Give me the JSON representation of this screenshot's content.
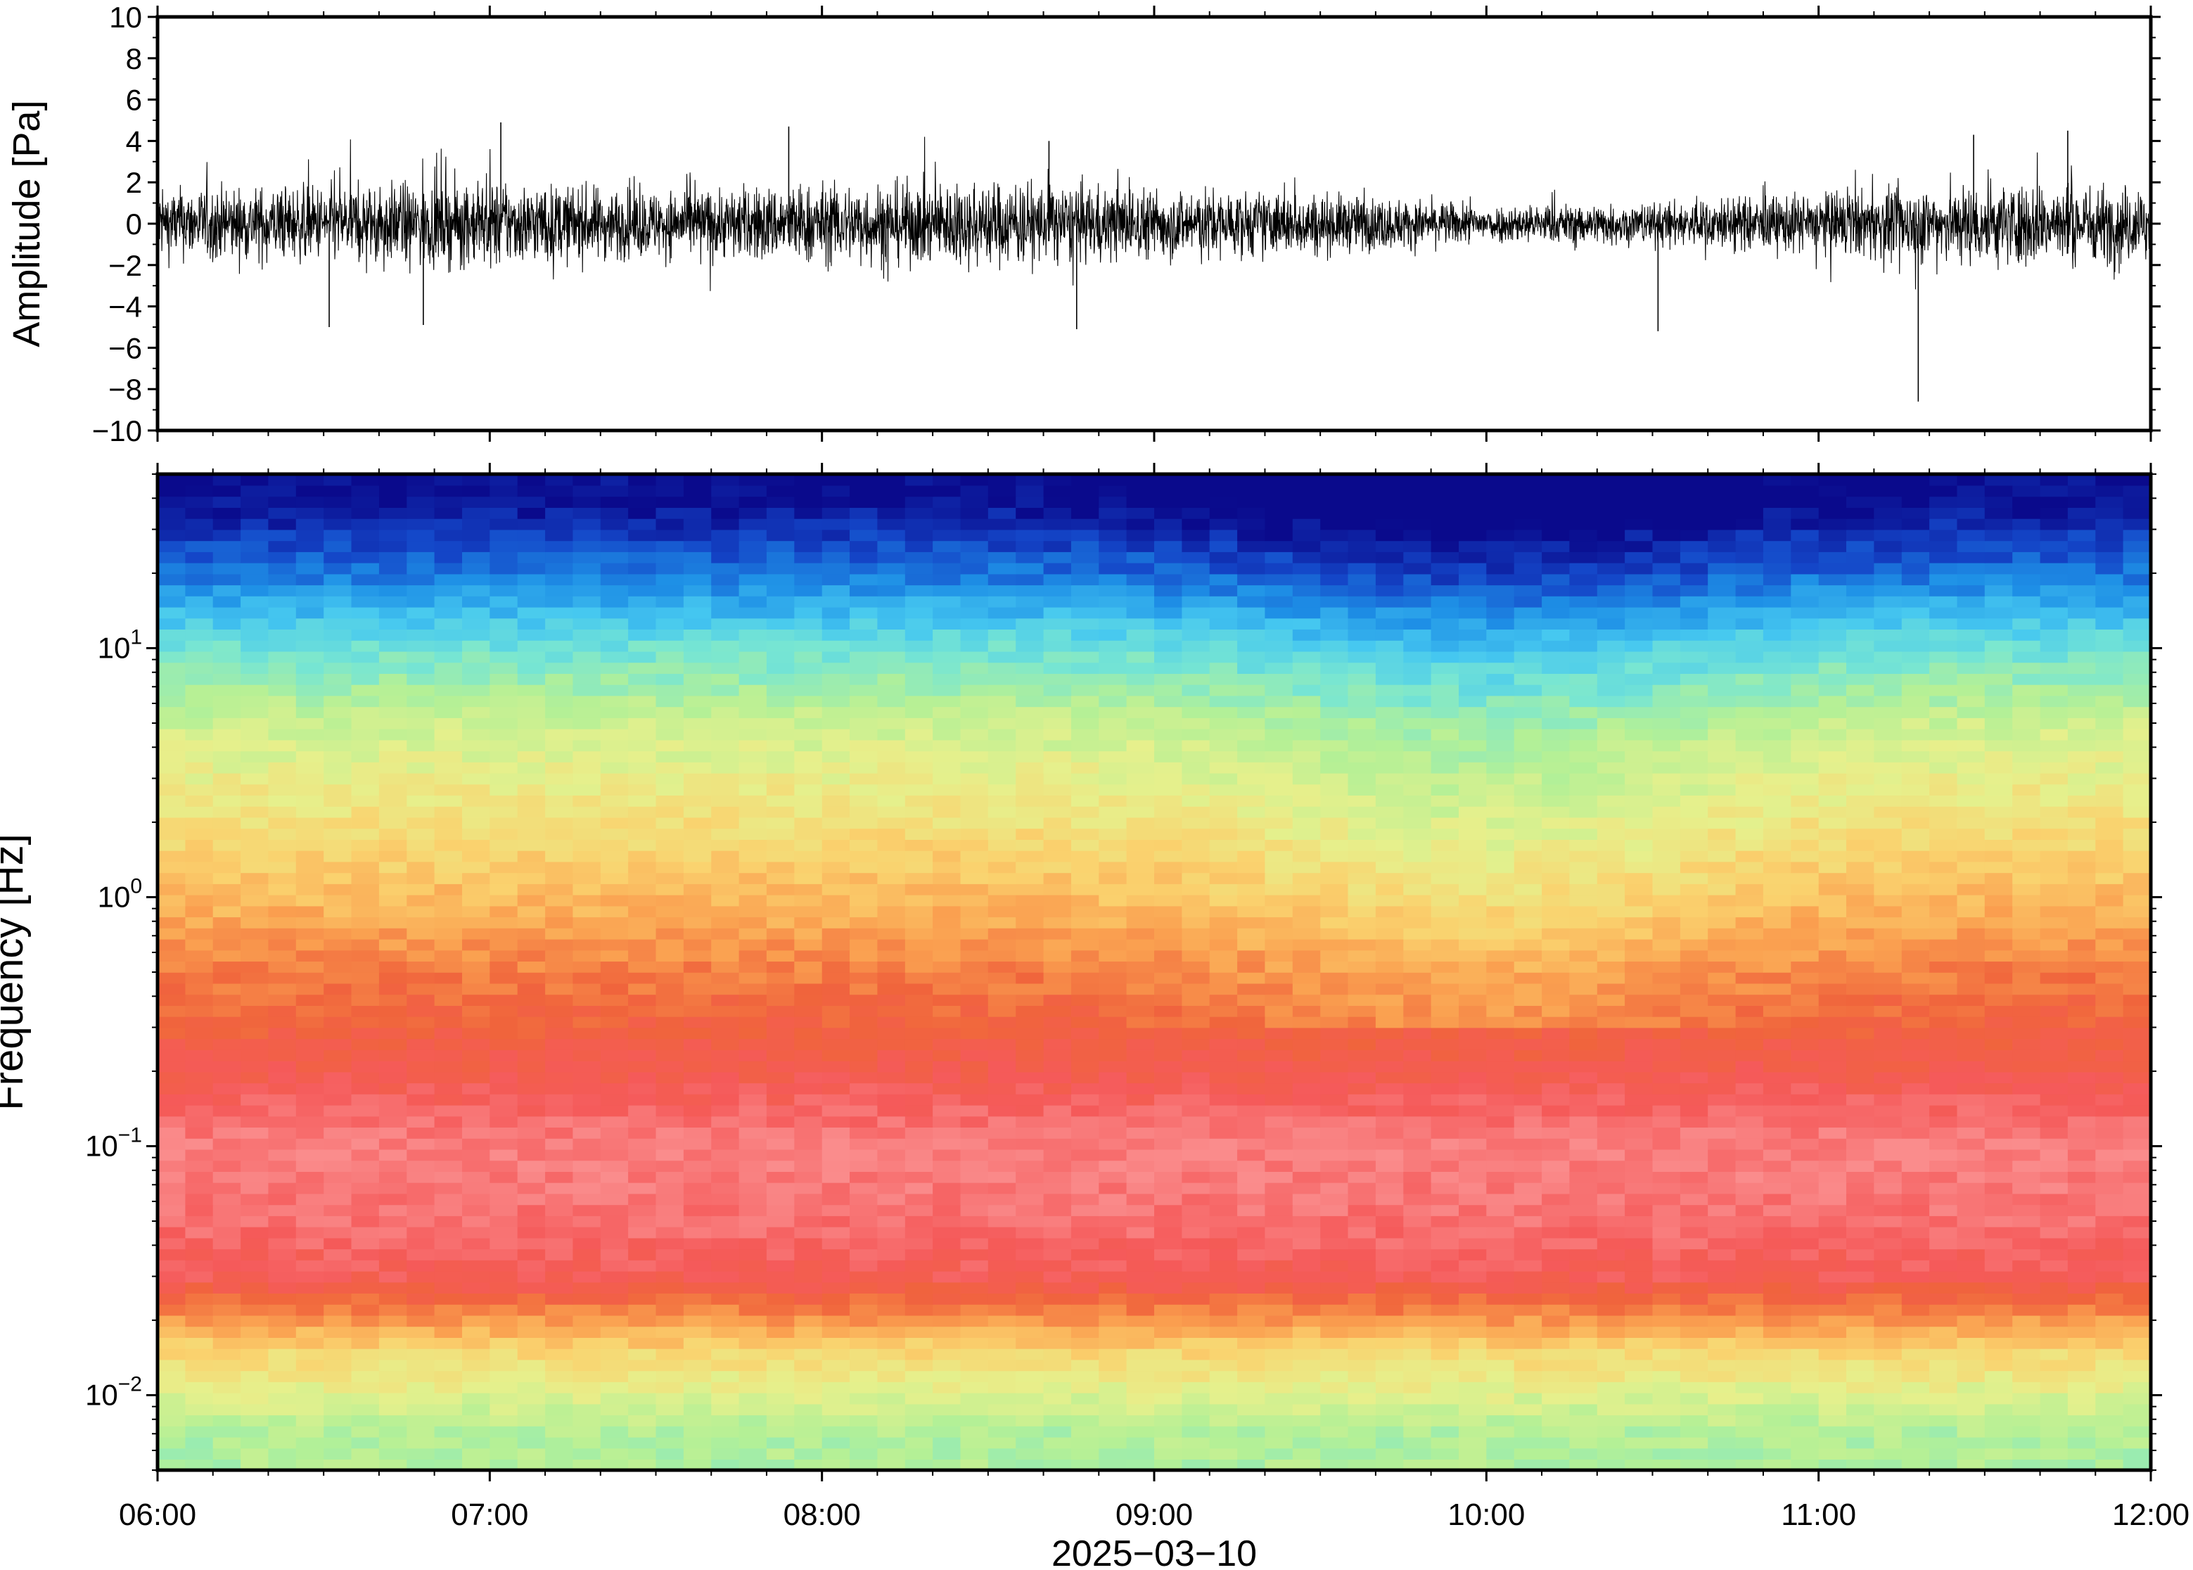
{
  "chart_data": [
    {
      "type": "line",
      "panel": "waveform",
      "ylabel": "Amplitude [Pa]",
      "ylim": [
        -10,
        10
      ],
      "yticks": [
        -10,
        -8,
        -6,
        -4,
        -2,
        0,
        2,
        4,
        6,
        8,
        10
      ],
      "ytick_labels": [
        "−10",
        "−8",
        "−6",
        "−4",
        "−2",
        "0",
        "2",
        "4",
        "6",
        "8",
        "10"
      ],
      "xlim": [
        "06:00",
        "12:00"
      ],
      "grid": false,
      "notable_peaks": [
        {
          "time": "06:31",
          "value": -5.0
        },
        {
          "time": "06:48",
          "value": -4.9
        },
        {
          "time": "07:02",
          "value": 4.9
        },
        {
          "time": "07:54",
          "value": 4.7
        },
        {
          "time": "08:41",
          "value": 4.0
        },
        {
          "time": "08:46",
          "value": -5.1
        },
        {
          "time": "10:31",
          "value": -5.2
        },
        {
          "time": "11:18",
          "value": -8.6
        },
        {
          "time": "11:28",
          "value": 4.3
        },
        {
          "time": "11:45",
          "value": 4.5
        }
      ],
      "envelope": {
        "times": [
          "06:00",
          "06:30",
          "07:00",
          "07:30",
          "08:00",
          "08:30",
          "09:00",
          "09:30",
          "10:00",
          "10:30",
          "11:00",
          "11:30",
          "12:00"
        ],
        "typical_abs_amplitude": [
          1.5,
          1.6,
          1.8,
          1.4,
          1.7,
          1.8,
          1.5,
          1.3,
          0.8,
          0.9,
          1.3,
          1.8,
          1.6
        ]
      }
    },
    {
      "type": "heatmap",
      "panel": "spectrogram",
      "ylabel": "Frequency [Hz]",
      "yscale": "log",
      "ylim": [
        0.005,
        50
      ],
      "yticks": [
        0.01,
        0.1,
        1,
        10
      ],
      "ytick_labels": [
        {
          "base": "10",
          "exp": "−2"
        },
        {
          "base": "10",
          "exp": "−1"
        },
        {
          "base": "10",
          "exp": "0"
        },
        {
          "base": "10",
          "exp": "1"
        }
      ],
      "xlabel": "2025−03−10",
      "xlim": [
        "06:00",
        "12:00"
      ],
      "xticks": [
        "06:00",
        "07:00",
        "08:00",
        "09:00",
        "10:00",
        "11:00",
        "12:00"
      ],
      "colormap": [
        "#0a0a8c",
        "#1446c8",
        "#1e90e6",
        "#46c8f0",
        "#78e6d2",
        "#b4f096",
        "#e6f08c",
        "#fad26e",
        "#faa050",
        "#f0643c",
        "#f55a5a",
        "#fa8c8c"
      ],
      "description_levels": {
        "frequency_hz": [
          40,
          20,
          10,
          5,
          2,
          1,
          0.5,
          0.2,
          0.1,
          0.05,
          0.03,
          0.015,
          0.007
        ],
        "relative_power": [
          0.0,
          0.15,
          0.35,
          0.5,
          0.6,
          0.68,
          0.78,
          0.88,
          0.98,
          0.95,
          0.9,
          0.62,
          0.45
        ]
      }
    }
  ]
}
